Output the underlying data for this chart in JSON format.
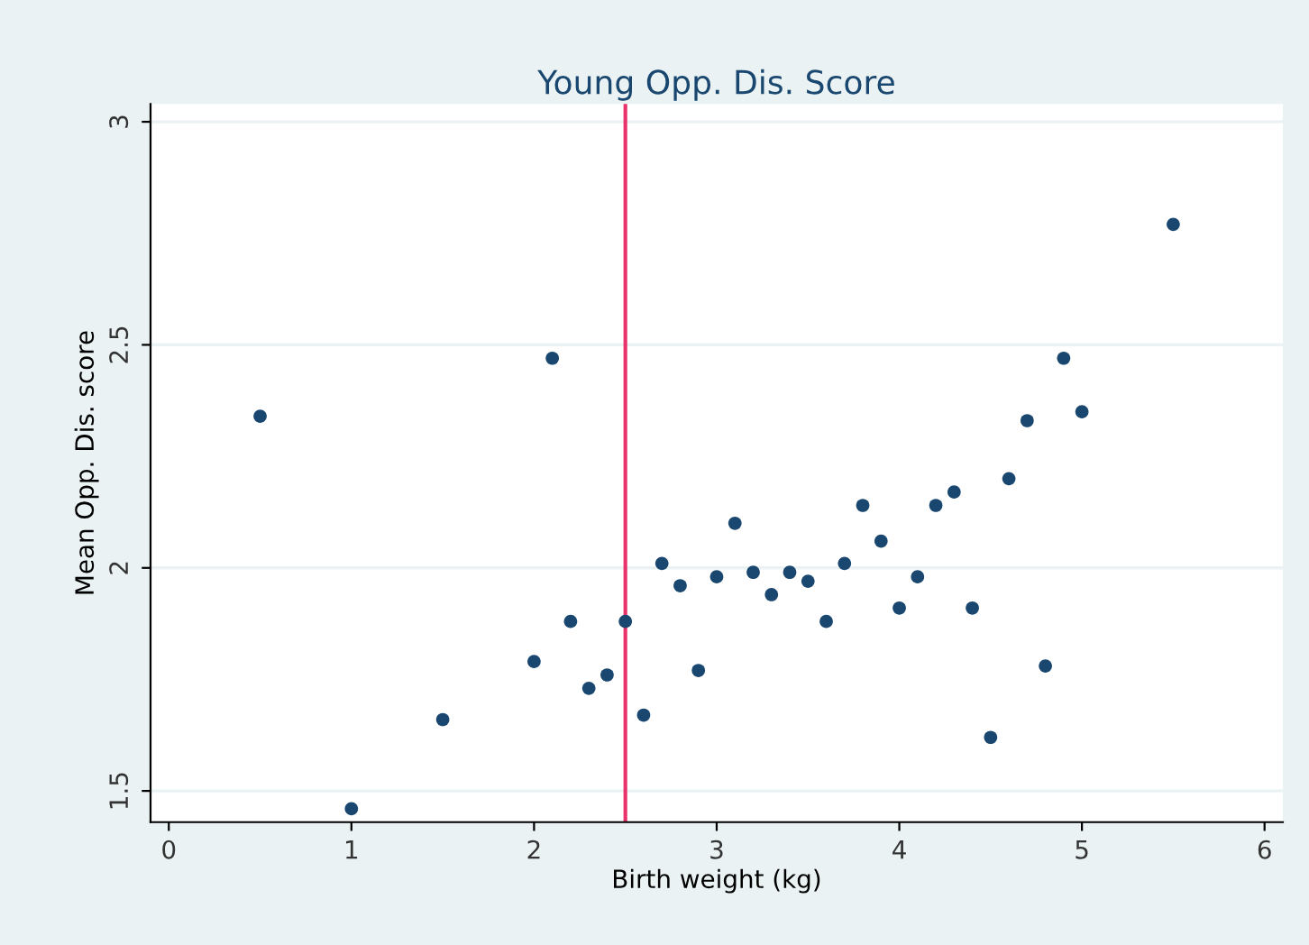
{
  "chart_data": {
    "type": "scatter",
    "title": "Young Opp. Dis. Score",
    "xlabel": "Birth weight (kg)",
    "ylabel": "Mean Opp. Dis. score",
    "x": [
      0.5,
      1.0,
      1.5,
      2.0,
      2.1,
      2.2,
      2.3,
      2.4,
      2.5,
      2.6,
      2.7,
      2.8,
      2.9,
      3.0,
      3.1,
      3.2,
      3.3,
      3.4,
      3.5,
      3.6,
      3.7,
      3.8,
      3.9,
      4.0,
      4.1,
      4.2,
      4.3,
      4.4,
      4.5,
      4.6,
      4.7,
      4.8,
      4.9,
      5.0,
      5.5
    ],
    "series": [
      {
        "color": "#1a476f",
        "values": [
          2.34,
          1.46,
          1.66,
          1.79,
          2.47,
          1.88,
          1.73,
          1.76,
          1.88,
          1.67,
          2.01,
          1.96,
          1.77,
          1.98,
          2.1,
          1.99,
          1.94,
          1.99,
          1.97,
          1.88,
          2.01,
          2.14,
          2.06,
          1.91,
          1.98,
          2.14,
          2.17,
          1.91,
          1.62,
          2.2,
          2.33,
          1.78,
          2.47,
          2.35,
          2.77
        ]
      }
    ],
    "xlim": [
      -0.1,
      6.1
    ],
    "ylim": [
      1.43,
      3.04
    ],
    "xticks": [
      0,
      1,
      2,
      3,
      4,
      5,
      6
    ],
    "yticks": [
      1.5,
      2,
      2.5,
      3
    ],
    "ref_lines": [
      {
        "axis": "x",
        "value": 2.5,
        "color": "#e8336b"
      }
    ],
    "grid": "y",
    "marker": "circle"
  }
}
